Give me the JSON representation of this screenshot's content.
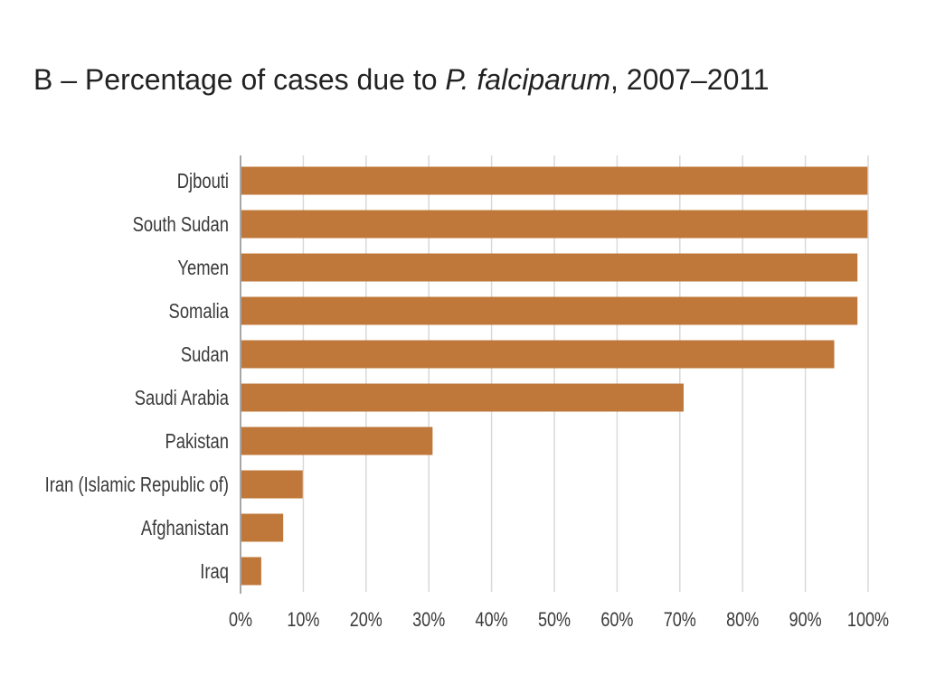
{
  "title": {
    "prefix": "B – Percentage of cases due to ",
    "italic": "P. falciparum",
    "suffix": ", 2007–2011"
  },
  "colors": {
    "bar": "#c0783a",
    "grid": "#d9d9d9",
    "axis": "#a6a6a6",
    "text": "#3a3a3a"
  },
  "chart_data": {
    "type": "bar",
    "orientation": "horizontal",
    "title": "B – Percentage of cases due to P. falciparum, 2007–2011",
    "categories": [
      "Djbouti",
      "South Sudan",
      "Yemen",
      "Somalia",
      "Sudan",
      "Saudi Arabia",
      "Pakistan",
      "Iran (Islamic Republic of)",
      "Afghanistan",
      "Iraq"
    ],
    "values": [
      99.9,
      99.9,
      98.3,
      98.3,
      94.6,
      70.6,
      30.6,
      9.9,
      6.8,
      3.3
    ],
    "xlim": [
      0,
      100
    ],
    "ticks": [
      "0%",
      "10%",
      "20%",
      "30%",
      "40%",
      "50%",
      "60%",
      "70%",
      "80%",
      "90%",
      "100%"
    ],
    "grid": true,
    "xlabel": "",
    "ylabel": ""
  }
}
